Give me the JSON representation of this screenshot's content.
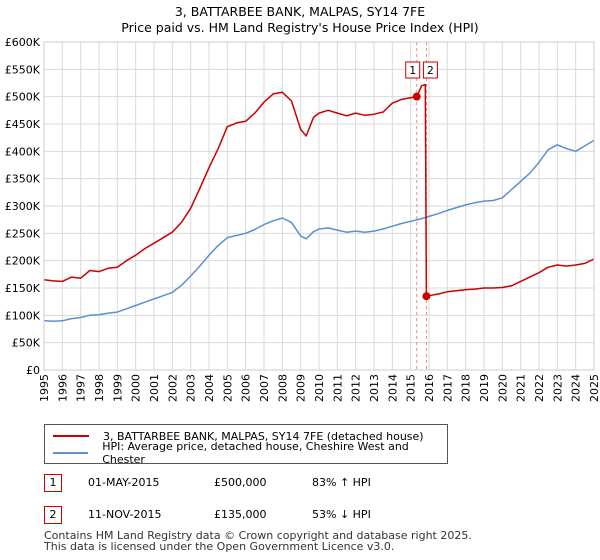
{
  "chart_data": {
    "type": "line",
    "title": "3, BATTARBEE BANK, MALPAS, SY14 7FE",
    "subtitle": "Price paid vs. HM Land Registry's House Price Index (HPI)",
    "xlim": [
      1995,
      2025
    ],
    "ylim": [
      0,
      600000
    ],
    "x_ticks": [
      "1995",
      "1996",
      "1997",
      "1998",
      "1999",
      "2000",
      "2001",
      "2002",
      "2003",
      "2004",
      "2005",
      "2006",
      "2007",
      "2008",
      "2009",
      "2010",
      "2011",
      "2012",
      "2013",
      "2014",
      "2015",
      "2016",
      "2017",
      "2018",
      "2019",
      "2020",
      "2021",
      "2022",
      "2023",
      "2024",
      "2025"
    ],
    "y_ticks": [
      {
        "value": 0,
        "label": "£0"
      },
      {
        "value": 50000,
        "label": "£50K"
      },
      {
        "value": 100000,
        "label": "£100K"
      },
      {
        "value": 150000,
        "label": "£150K"
      },
      {
        "value": 200000,
        "label": "£200K"
      },
      {
        "value": 250000,
        "label": "£250K"
      },
      {
        "value": 300000,
        "label": "£300K"
      },
      {
        "value": 350000,
        "label": "£350K"
      },
      {
        "value": 400000,
        "label": "£400K"
      },
      {
        "value": 450000,
        "label": "£450K"
      },
      {
        "value": 500000,
        "label": "£500K"
      },
      {
        "value": 550000,
        "label": "£550K"
      },
      {
        "value": 600000,
        "label": "£600K"
      }
    ],
    "grid": true,
    "series": [
      {
        "name": "3, BATTARBEE BANK, MALPAS, SY14 7FE (detached house)",
        "color": "#cc0000",
        "points": [
          [
            1995.0,
            165000
          ],
          [
            1995.5,
            163000
          ],
          [
            1996.0,
            162000
          ],
          [
            1996.5,
            170000
          ],
          [
            1997.0,
            168000
          ],
          [
            1997.5,
            182000
          ],
          [
            1998.0,
            180000
          ],
          [
            1998.5,
            186000
          ],
          [
            1999.0,
            188000
          ],
          [
            1999.5,
            200000
          ],
          [
            2000.0,
            210000
          ],
          [
            2000.5,
            222000
          ],
          [
            2001.0,
            232000
          ],
          [
            2001.5,
            242000
          ],
          [
            2002.0,
            252000
          ],
          [
            2002.5,
            270000
          ],
          [
            2003.0,
            296000
          ],
          [
            2003.5,
            332000
          ],
          [
            2004.0,
            370000
          ],
          [
            2004.5,
            405000
          ],
          [
            2005.0,
            445000
          ],
          [
            2005.5,
            452000
          ],
          [
            2006.0,
            455000
          ],
          [
            2006.5,
            470000
          ],
          [
            2007.0,
            490000
          ],
          [
            2007.5,
            505000
          ],
          [
            2008.0,
            508000
          ],
          [
            2008.5,
            492000
          ],
          [
            2009.0,
            440000
          ],
          [
            2009.3,
            428000
          ],
          [
            2009.7,
            462000
          ],
          [
            2010.0,
            470000
          ],
          [
            2010.5,
            475000
          ],
          [
            2011.0,
            470000
          ],
          [
            2011.5,
            465000
          ],
          [
            2012.0,
            470000
          ],
          [
            2012.5,
            466000
          ],
          [
            2013.0,
            468000
          ],
          [
            2013.5,
            472000
          ],
          [
            2014.0,
            488000
          ],
          [
            2014.5,
            495000
          ],
          [
            2015.0,
            498000
          ],
          [
            2015.33,
            500000
          ],
          [
            2015.6,
            520000
          ],
          [
            2015.8,
            522000
          ],
          [
            2015.86,
            135000
          ],
          [
            2016.0,
            136000
          ],
          [
            2016.5,
            139000
          ],
          [
            2017.0,
            143000
          ],
          [
            2017.5,
            145000
          ],
          [
            2018.0,
            147000
          ],
          [
            2018.5,
            148000
          ],
          [
            2019.0,
            150000
          ],
          [
            2019.5,
            150000
          ],
          [
            2020.0,
            151000
          ],
          [
            2020.5,
            154000
          ],
          [
            2021.0,
            162000
          ],
          [
            2021.5,
            170000
          ],
          [
            2022.0,
            178000
          ],
          [
            2022.5,
            188000
          ],
          [
            2023.0,
            192000
          ],
          [
            2023.5,
            190000
          ],
          [
            2024.0,
            192000
          ],
          [
            2024.5,
            195000
          ],
          [
            2025.0,
            203000
          ]
        ]
      },
      {
        "name": "HPI: Average price, detached house, Cheshire West and Chester",
        "color": "#5b8fd0",
        "points": [
          [
            1995.0,
            90000
          ],
          [
            1995.5,
            89000
          ],
          [
            1996.0,
            90000
          ],
          [
            1996.5,
            94000
          ],
          [
            1997.0,
            96000
          ],
          [
            1997.5,
            100000
          ],
          [
            1998.0,
            101000
          ],
          [
            1998.5,
            104000
          ],
          [
            1999.0,
            106000
          ],
          [
            1999.5,
            112000
          ],
          [
            2000.0,
            118000
          ],
          [
            2000.5,
            124000
          ],
          [
            2001.0,
            130000
          ],
          [
            2001.5,
            136000
          ],
          [
            2002.0,
            142000
          ],
          [
            2002.5,
            155000
          ],
          [
            2003.0,
            172000
          ],
          [
            2003.5,
            190000
          ],
          [
            2004.0,
            210000
          ],
          [
            2004.5,
            228000
          ],
          [
            2005.0,
            242000
          ],
          [
            2005.5,
            246000
          ],
          [
            2006.0,
            250000
          ],
          [
            2006.5,
            257000
          ],
          [
            2007.0,
            266000
          ],
          [
            2007.5,
            273000
          ],
          [
            2008.0,
            278000
          ],
          [
            2008.5,
            270000
          ],
          [
            2009.0,
            245000
          ],
          [
            2009.3,
            240000
          ],
          [
            2009.7,
            253000
          ],
          [
            2010.0,
            258000
          ],
          [
            2010.5,
            260000
          ],
          [
            2011.0,
            256000
          ],
          [
            2011.5,
            252000
          ],
          [
            2012.0,
            254000
          ],
          [
            2012.5,
            252000
          ],
          [
            2013.0,
            254000
          ],
          [
            2013.5,
            258000
          ],
          [
            2014.0,
            263000
          ],
          [
            2014.5,
            268000
          ],
          [
            2015.0,
            272000
          ],
          [
            2015.5,
            276000
          ],
          [
            2016.0,
            281000
          ],
          [
            2016.5,
            286000
          ],
          [
            2017.0,
            292000
          ],
          [
            2017.5,
            297000
          ],
          [
            2018.0,
            302000
          ],
          [
            2018.5,
            306000
          ],
          [
            2019.0,
            309000
          ],
          [
            2019.5,
            310000
          ],
          [
            2020.0,
            315000
          ],
          [
            2020.5,
            330000
          ],
          [
            2021.0,
            345000
          ],
          [
            2021.5,
            360000
          ],
          [
            2022.0,
            380000
          ],
          [
            2022.5,
            403000
          ],
          [
            2023.0,
            412000
          ],
          [
            2023.5,
            405000
          ],
          [
            2024.0,
            400000
          ],
          [
            2024.5,
            410000
          ],
          [
            2025.0,
            420000
          ]
        ]
      }
    ],
    "sales": [
      {
        "label": "1",
        "x": 2015.33,
        "y": 500000
      },
      {
        "label": "2",
        "x": 2015.86,
        "y": 135000
      }
    ]
  },
  "legend": {
    "items": [
      {
        "label": "3, BATTARBEE BANK, MALPAS, SY14 7FE (detached house)",
        "color": "#cc0000"
      },
      {
        "label": "HPI: Average price, detached house, Cheshire West and Chester",
        "color": "#5b8fd0"
      }
    ]
  },
  "transactions": [
    {
      "num": "1",
      "date": "01-MAY-2015",
      "price": "£500,000",
      "hpi": "83% ↑ HPI"
    },
    {
      "num": "2",
      "date": "11-NOV-2015",
      "price": "£135,000",
      "hpi": "53% ↓ HPI"
    }
  ],
  "footer": {
    "line1": "Contains HM Land Registry data © Crown copyright and database right 2025.",
    "line2": "This data is licensed under the Open Government Licence v3.0."
  }
}
